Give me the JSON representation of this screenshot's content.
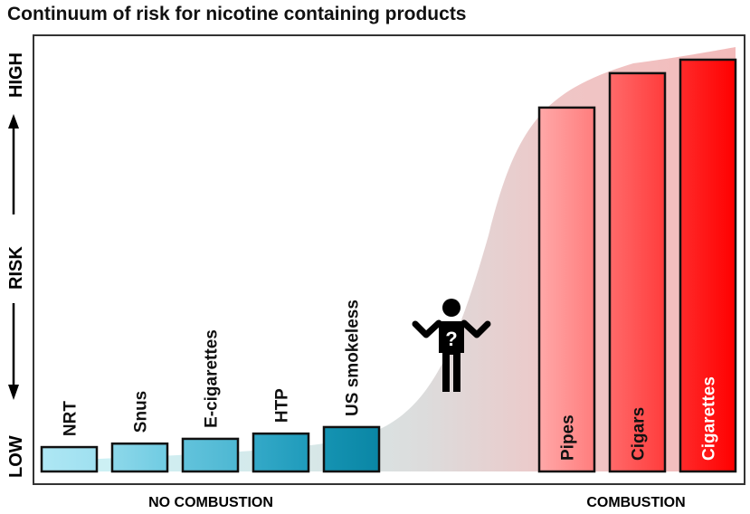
{
  "chart_data": {
    "type": "bar",
    "title": "Continuum of risk for nicotine containing products",
    "ylabel": {
      "low": "LOW",
      "mid": "RISK",
      "high": "HIGH"
    },
    "ylim": [
      0,
      100
    ],
    "categories": [
      "NRT",
      "Snus",
      "E-cigarettes",
      "HTP",
      "US smokeless",
      "Pipes",
      "Cigars",
      "Cigarettes"
    ],
    "values": [
      5.6,
      6.4,
      7.5,
      8.7,
      10.2,
      83.6,
      91.5,
      94.6
    ],
    "groups": [
      {
        "label": "NO COMBUSTION",
        "members": [
          "NRT",
          "Snus",
          "E-cigarettes",
          "HTP",
          "US smokeless"
        ]
      },
      {
        "label": "COMBUSTION",
        "members": [
          "Pipes",
          "Cigars",
          "Cigarettes"
        ]
      }
    ],
    "colors": {
      "no_combustion_light": "#a6e4f2",
      "no_combustion_dark": "#0a87a6",
      "combustion_light": "#ffa3a3",
      "combustion_dark": "#ff0000",
      "curve_low": "#c9f3f8",
      "curve_mid": "#dcdcdc",
      "curve_high": "#f0bcbc"
    },
    "annotation_icon": "confused-person-question-icon",
    "grid": false
  }
}
